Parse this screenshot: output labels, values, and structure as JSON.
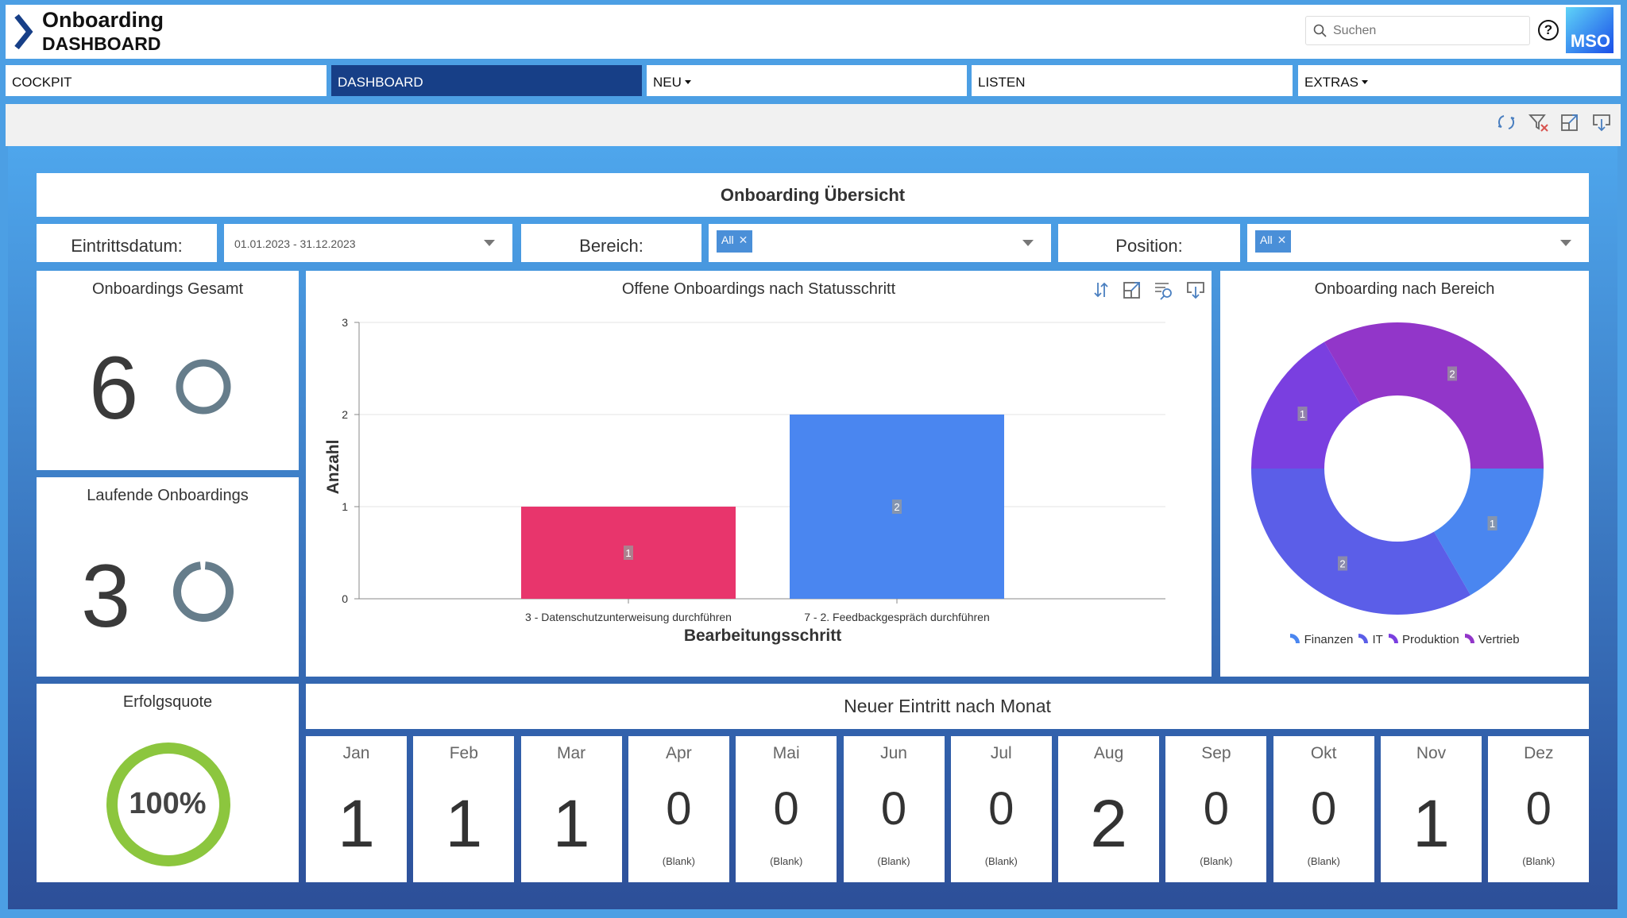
{
  "header": {
    "title_line1": "Onboarding",
    "title_line2": "DASHBOARD",
    "search_placeholder": "Suchen",
    "help": "?",
    "logo": "MSO"
  },
  "nav": {
    "tabs": [
      {
        "label": "COCKPIT"
      },
      {
        "label": "DASHBOARD",
        "active": true
      },
      {
        "label": "NEU",
        "dropdown": true
      },
      {
        "label": "LISTEN"
      },
      {
        "label": "EXTRAS",
        "dropdown": true
      }
    ]
  },
  "toolbar": {
    "icons": [
      "refresh-icon",
      "clear-filter-icon",
      "maximize-icon",
      "export-icon"
    ]
  },
  "dashboard": {
    "title": "Onboarding Übersicht",
    "filters": {
      "date_label": "Eintrittsdatum:",
      "date_value": "01.01.2023 - 31.12.2023",
      "bereich_label": "Bereich:",
      "bereich_chip": "All",
      "position_label": "Position:",
      "position_chip": "All"
    },
    "kpis": {
      "gesamt": {
        "title": "Onboardings Gesamt",
        "value": "6",
        "ring_fraction": 1
      },
      "laufend": {
        "title": "Laufende Onboardings",
        "value": "3",
        "ring_fraction": 0.97
      },
      "erfolg": {
        "title": "Erfolgsquote",
        "value": "100%",
        "ring_fraction": 1,
        "color": "#8cc63e"
      }
    },
    "monthly": {
      "title": "Neuer Eintritt nach Monat",
      "months": [
        {
          "name": "Jan",
          "value": "1",
          "blank": ""
        },
        {
          "name": "Feb",
          "value": "1",
          "blank": ""
        },
        {
          "name": "Mar",
          "value": "1",
          "blank": ""
        },
        {
          "name": "Apr",
          "value": "0",
          "blank": "(Blank)"
        },
        {
          "name": "Mai",
          "value": "0",
          "blank": "(Blank)"
        },
        {
          "name": "Jun",
          "value": "0",
          "blank": "(Blank)"
        },
        {
          "name": "Jul",
          "value": "0",
          "blank": "(Blank)"
        },
        {
          "name": "Aug",
          "value": "2",
          "blank": ""
        },
        {
          "name": "Sep",
          "value": "0",
          "blank": "(Blank)"
        },
        {
          "name": "Okt",
          "value": "0",
          "blank": "(Blank)"
        },
        {
          "name": "Nov",
          "value": "1",
          "blank": ""
        },
        {
          "name": "Dez",
          "value": "0",
          "blank": "(Blank)"
        }
      ]
    }
  },
  "chart_data": [
    {
      "type": "bar",
      "title": "Offene Onboardings nach Statusschritt",
      "xlabel": "Bearbeitungsschritt",
      "ylabel": "Anzahl",
      "categories": [
        "3 - Datenschutzunterweisung durchführen",
        "7 - 2. Feedbackgespräch durchführen"
      ],
      "values": [
        1,
        2
      ],
      "colors": [
        "#e8356c",
        "#4a86f0"
      ],
      "ylim": [
        0,
        3
      ],
      "yticks": [
        "0",
        "1",
        "2",
        "3"
      ],
      "grid": true
    },
    {
      "type": "pie",
      "title": "Onboarding nach Bereich",
      "donut": true,
      "labels": [
        "Finanzen",
        "IT",
        "Produktion",
        "Vertrieb"
      ],
      "values": [
        1,
        2,
        1,
        2
      ],
      "colors": [
        "#4a86f0",
        "#5b5ee8",
        "#7a3fe0",
        "#9236c9"
      ],
      "legend": "bottom"
    }
  ]
}
